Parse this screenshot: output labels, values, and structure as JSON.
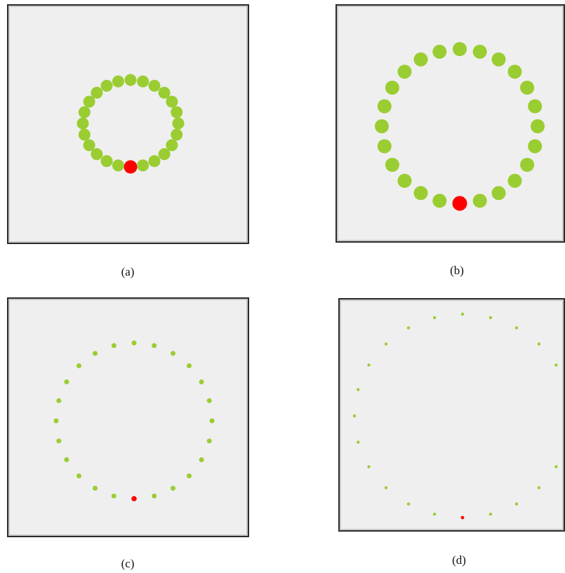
{
  "colors": {
    "dot": "#9acd32",
    "highlight": "#ff0000",
    "background": "#efefef",
    "border": "#2b2b2b"
  },
  "panels": [
    {
      "caption": "(a)",
      "dot_count": 24
    },
    {
      "caption": "(b)",
      "dot_count": 24
    },
    {
      "caption": "(c)",
      "dot_count": 24
    },
    {
      "caption": "(d)",
      "dot_count": 24
    }
  ]
}
